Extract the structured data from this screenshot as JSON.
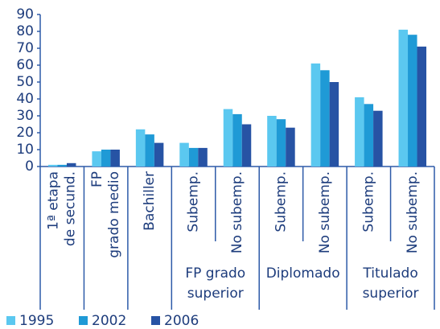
{
  "chart_data": {
    "type": "bar",
    "categories": [
      [
        "1ª etapa",
        "de secund."
      ],
      [
        "FP",
        "grado medio"
      ],
      [
        "Bachiller"
      ],
      [
        "Subemp."
      ],
      [
        "No subemp."
      ],
      [
        "Subemp."
      ],
      [
        "No subemp."
      ],
      [
        "Subemp."
      ],
      [
        "No subemp."
      ]
    ],
    "groups": [
      {
        "label": [
          "FP grado",
          "superior"
        ],
        "span": [
          3,
          4
        ]
      },
      {
        "label": [
          "Diplomado"
        ],
        "span": [
          5,
          6
        ]
      },
      {
        "label": [
          "Titulado",
          "superior"
        ],
        "span": [
          7,
          8
        ]
      }
    ],
    "series": [
      {
        "name": "1995",
        "color": "#5bc8f0",
        "values": [
          1,
          9,
          22,
          14,
          34,
          30,
          61,
          41,
          81
        ]
      },
      {
        "name": "2002",
        "color": "#1f9ad6",
        "values": [
          1,
          10,
          19,
          11,
          31,
          28,
          57,
          37,
          78
        ]
      },
      {
        "name": "2006",
        "color": "#2753a4",
        "values": [
          2,
          10,
          14,
          11,
          25,
          23,
          50,
          33,
          71
        ]
      }
    ],
    "ylim": [
      0,
      90
    ],
    "yticks": [
      0,
      10,
      20,
      30,
      40,
      50,
      60,
      70,
      80,
      90
    ],
    "grid": false
  }
}
